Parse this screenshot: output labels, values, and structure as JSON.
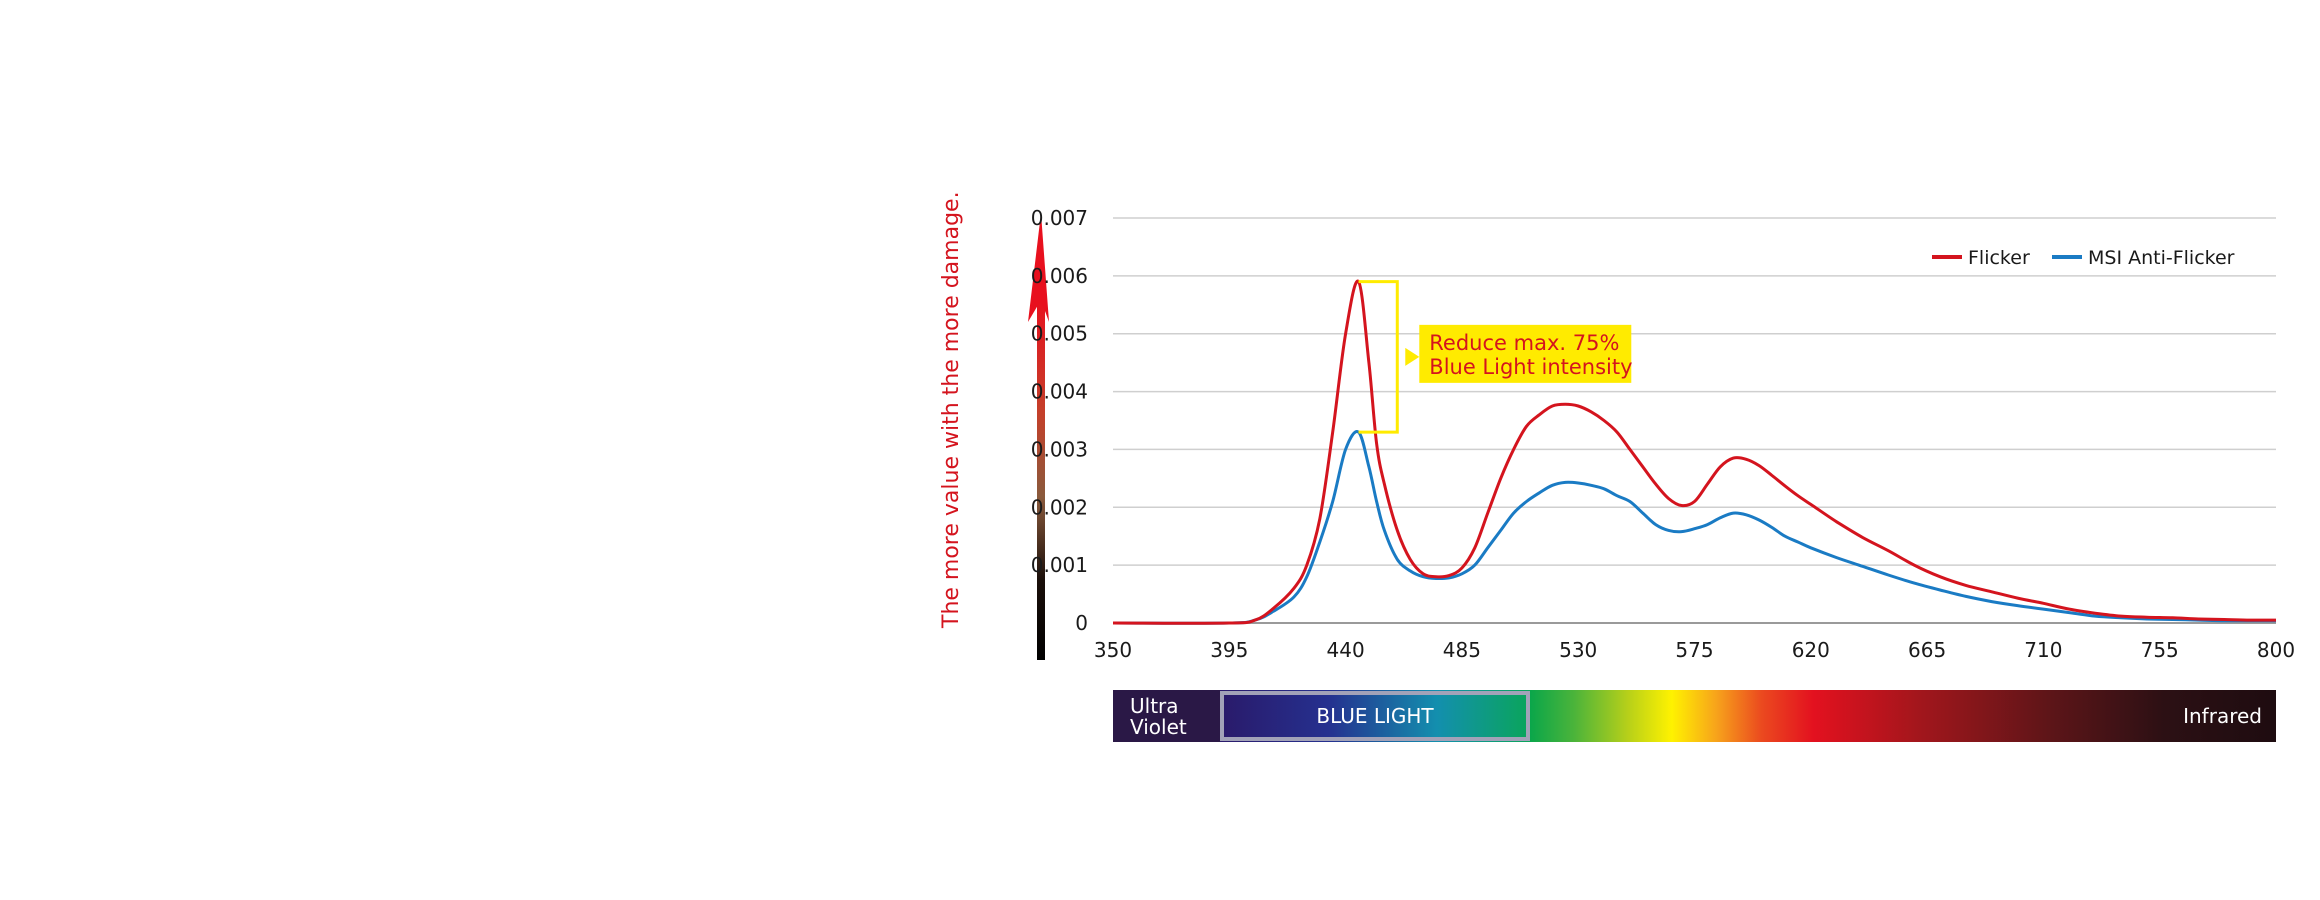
{
  "chart_data": {
    "type": "line",
    "title": "",
    "xlabel": "",
    "ylabel": "",
    "x_ticks": [
      350,
      395,
      440,
      485,
      530,
      575,
      620,
      665,
      710,
      755,
      800
    ],
    "y_ticks": [
      0,
      0.001,
      0.002,
      0.003,
      0.004,
      0.005,
      0.006,
      0.007
    ],
    "y_tick_labels": [
      "0",
      "0.001",
      "0.002",
      "0.003",
      "0.004",
      "0.005",
      "0.006",
      "0.007"
    ],
    "xlim": [
      350,
      800
    ],
    "ylim": [
      0,
      0.007
    ],
    "grid": "horizontal",
    "legend_position": "top-right",
    "series": [
      {
        "name": "Flicker",
        "color": "#d4141e",
        "points": [
          [
            350,
            0
          ],
          [
            395,
            0
          ],
          [
            405,
            5e-05
          ],
          [
            412,
            0.00025
          ],
          [
            420,
            0.0006
          ],
          [
            425,
            0.001
          ],
          [
            430,
            0.0018
          ],
          [
            435,
            0.0033
          ],
          [
            440,
            0.005
          ],
          [
            445,
            0.0059
          ],
          [
            449,
            0.0045
          ],
          [
            452,
            0.0031
          ],
          [
            455,
            0.0024
          ],
          [
            460,
            0.0016
          ],
          [
            465,
            0.0011
          ],
          [
            470,
            0.00085
          ],
          [
            475,
            0.0008
          ],
          [
            480,
            0.00082
          ],
          [
            485,
            0.00095
          ],
          [
            490,
            0.0013
          ],
          [
            495,
            0.0019
          ],
          [
            500,
            0.0025
          ],
          [
            505,
            0.003
          ],
          [
            510,
            0.0034
          ],
          [
            515,
            0.0036
          ],
          [
            520,
            0.00375
          ],
          [
            525,
            0.00378
          ],
          [
            530,
            0.00375
          ],
          [
            535,
            0.00365
          ],
          [
            540,
            0.0035
          ],
          [
            545,
            0.0033
          ],
          [
            550,
            0.003
          ],
          [
            555,
            0.0027
          ],
          [
            560,
            0.0024
          ],
          [
            565,
            0.00215
          ],
          [
            570,
            0.00203
          ],
          [
            575,
            0.0021
          ],
          [
            580,
            0.0024
          ],
          [
            585,
            0.0027
          ],
          [
            590,
            0.00285
          ],
          [
            595,
            0.00283
          ],
          [
            600,
            0.00272
          ],
          [
            605,
            0.00255
          ],
          [
            610,
            0.00237
          ],
          [
            615,
            0.0022
          ],
          [
            620,
            0.00205
          ],
          [
            630,
            0.00175
          ],
          [
            640,
            0.00148
          ],
          [
            650,
            0.00125
          ],
          [
            660,
            0.001
          ],
          [
            670,
            0.0008
          ],
          [
            680,
            0.00065
          ],
          [
            690,
            0.00054
          ],
          [
            700,
            0.00043
          ],
          [
            710,
            0.00034
          ],
          [
            720,
            0.00024
          ],
          [
            730,
            0.00017
          ],
          [
            740,
            0.00012
          ],
          [
            750,
            0.0001
          ],
          [
            760,
            9e-05
          ],
          [
            770,
            7e-05
          ],
          [
            780,
            6e-05
          ],
          [
            790,
            5e-05
          ],
          [
            800,
            5e-05
          ]
        ]
      },
      {
        "name": "MSI Anti-Flicker",
        "color": "#1a7bc4",
        "points": [
          [
            350,
            0
          ],
          [
            395,
            0
          ],
          [
            405,
            5e-05
          ],
          [
            412,
            0.0002
          ],
          [
            420,
            0.00045
          ],
          [
            425,
            0.0008
          ],
          [
            430,
            0.0014
          ],
          [
            435,
            0.0021
          ],
          [
            440,
            0.003
          ],
          [
            445,
            0.0033
          ],
          [
            449,
            0.0027
          ],
          [
            452,
            0.0021
          ],
          [
            455,
            0.0016
          ],
          [
            460,
            0.0011
          ],
          [
            465,
            0.0009
          ],
          [
            470,
            0.0008
          ],
          [
            475,
            0.00077
          ],
          [
            480,
            0.00078
          ],
          [
            485,
            0.00085
          ],
          [
            490,
            0.001
          ],
          [
            495,
            0.0013
          ],
          [
            500,
            0.0016
          ],
          [
            505,
            0.0019
          ],
          [
            510,
            0.0021
          ],
          [
            515,
            0.00225
          ],
          [
            520,
            0.00238
          ],
          [
            525,
            0.00243
          ],
          [
            530,
            0.00242
          ],
          [
            535,
            0.00238
          ],
          [
            540,
            0.00232
          ],
          [
            545,
            0.0022
          ],
          [
            550,
            0.0021
          ],
          [
            555,
            0.0019
          ],
          [
            560,
            0.0017
          ],
          [
            565,
            0.0016
          ],
          [
            570,
            0.00158
          ],
          [
            575,
            0.00163
          ],
          [
            580,
            0.0017
          ],
          [
            585,
            0.00182
          ],
          [
            590,
            0.0019
          ],
          [
            595,
            0.00187
          ],
          [
            600,
            0.00178
          ],
          [
            605,
            0.00165
          ],
          [
            610,
            0.0015
          ],
          [
            615,
            0.0014
          ],
          [
            620,
            0.0013
          ],
          [
            630,
            0.00113
          ],
          [
            640,
            0.00098
          ],
          [
            650,
            0.00083
          ],
          [
            660,
            0.00069
          ],
          [
            670,
            0.00057
          ],
          [
            680,
            0.00046
          ],
          [
            690,
            0.00037
          ],
          [
            700,
            0.0003
          ],
          [
            710,
            0.00024
          ],
          [
            720,
            0.00018
          ],
          [
            730,
            0.00012
          ],
          [
            740,
            9e-05
          ],
          [
            750,
            7e-05
          ],
          [
            760,
            6e-05
          ],
          [
            770,
            5e-05
          ],
          [
            780,
            4e-05
          ],
          [
            790,
            4e-05
          ],
          [
            800,
            4e-05
          ]
        ]
      }
    ],
    "annotation": {
      "lines": [
        "Reduce  max. 75%",
        "Blue Light intensity"
      ],
      "background": "#ffeb00",
      "text_color": "#d4141e",
      "x_range": [
        445,
        460
      ],
      "y_range": [
        0.0033,
        0.0059
      ]
    },
    "damage_arrow_label": "The more value with the more damage.",
    "spectrum_band": {
      "ultra_violet": [
        "Ultra",
        "Violet"
      ],
      "blue_light": "BLUE LIGHT",
      "infrared": "Infrared"
    }
  }
}
